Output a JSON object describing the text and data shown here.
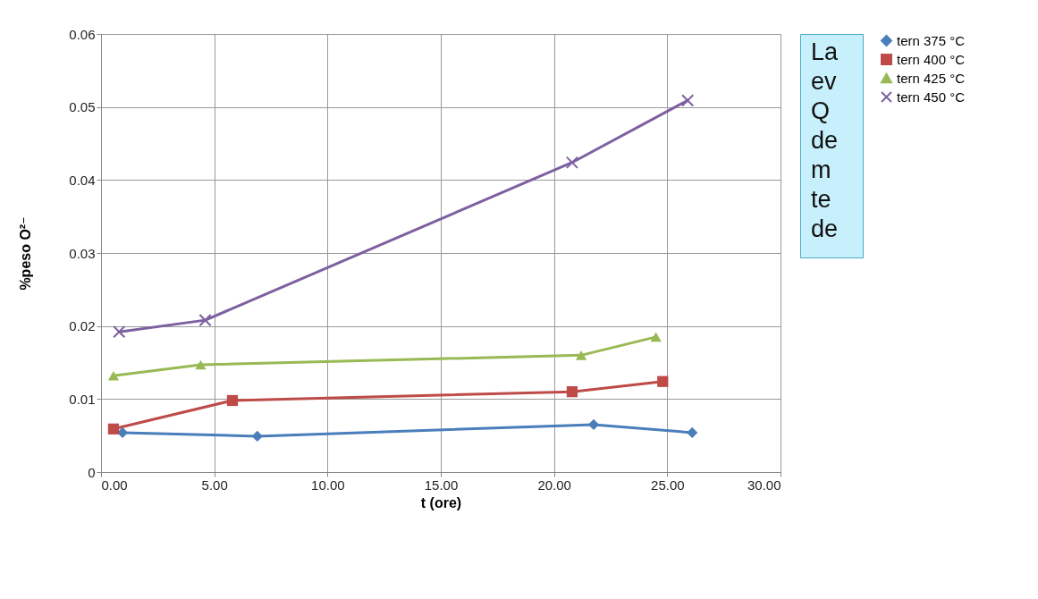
{
  "chart_data": {
    "type": "line",
    "xlabel": "t (ore)",
    "ylabel": "%peso O²⁻",
    "xlim": [
      0,
      30
    ],
    "xticks": [
      {
        "value": 0,
        "label": "0.00"
      },
      {
        "value": 5,
        "label": "5.00"
      },
      {
        "value": 10,
        "label": "10.00"
      },
      {
        "value": 15,
        "label": "15.00"
      },
      {
        "value": 20,
        "label": "20.00"
      },
      {
        "value": 25,
        "label": "25.00"
      },
      {
        "value": 30,
        "label": "30.00"
      }
    ],
    "ylim": [
      0,
      0.06
    ],
    "yticks": [
      0,
      0.01,
      0.02,
      0.03,
      0.04,
      0.05,
      0.06
    ],
    "grid": true,
    "legend": "right",
    "line_style": "solid",
    "series": [
      {
        "name": "tern 375 °C",
        "color": "#4a7ebb",
        "marker": "diamond",
        "x": [
          0.95,
          6.9,
          21.75,
          26.1
        ],
        "values": [
          0.0054,
          0.0049,
          0.0065,
          0.0054
        ]
      },
      {
        "name": "tern 400 °C",
        "color": "#be4b48",
        "marker": "square",
        "x": [
          0.55,
          5.8,
          20.8,
          24.8
        ],
        "values": [
          0.0059,
          0.0098,
          0.011,
          0.0124
        ]
      },
      {
        "name": "tern 425 °C",
        "color": "#98b954",
        "marker": "triangle",
        "x": [
          0.55,
          4.4,
          21.2,
          24.5
        ],
        "values": [
          0.0132,
          0.0147,
          0.016,
          0.0185
        ]
      },
      {
        "name": "tern 450 °C",
        "color": "#7d60a0",
        "marker": "cross",
        "x": [
          0.8,
          4.6,
          20.8,
          25.9
        ],
        "values": [
          0.0192,
          0.0208,
          0.0424,
          0.0509
        ]
      }
    ],
    "annotations": [
      "La\nev\nQ\nde\nm\nte\nde"
    ]
  }
}
